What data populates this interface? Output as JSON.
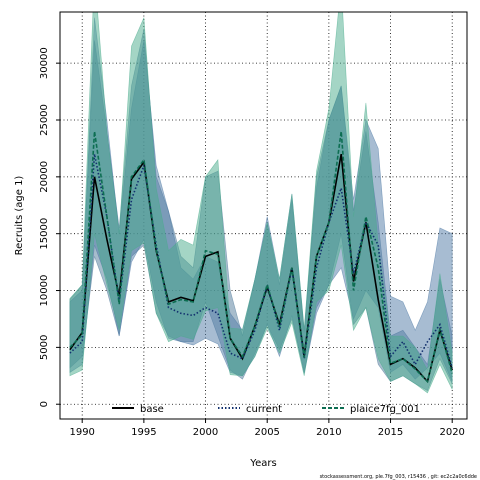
{
  "chart_data": {
    "type": "area",
    "title": "",
    "xlabel": "Years",
    "ylabel": "Recruits (age 1)",
    "xlim": [
      1988.2,
      2021.2
    ],
    "ylim": [
      -1300,
      34500
    ],
    "x_ticks": [
      1990,
      1995,
      2000,
      2005,
      2010,
      2015,
      2020
    ],
    "y_ticks": [
      0,
      5000,
      10000,
      15000,
      20000,
      25000,
      30000
    ],
    "grid": true,
    "legend_position": "bottom",
    "x": [
      1989,
      1990,
      1991,
      1992,
      1993,
      1994,
      1995,
      1996,
      1997,
      1998,
      1999,
      2000,
      2001,
      2002,
      2003,
      2004,
      2005,
      2006,
      2007,
      2008,
      2009,
      2010,
      2011,
      2012,
      2013,
      2014,
      2015,
      2016,
      2017,
      2018,
      2019,
      2020
    ],
    "series": [
      {
        "name": "base",
        "color": "#000000",
        "line_style": "solid",
        "band_color": "#4f7a9a",
        "values": [
          4800,
          6300,
          20000,
          14500,
          9500,
          19800,
          21300,
          13500,
          9000,
          9400,
          9100,
          13000,
          13400,
          5800,
          4000,
          6900,
          10300,
          7000,
          12000,
          4200,
          13000,
          16000,
          22000,
          10800,
          16000,
          9200,
          3500,
          4000,
          3200,
          2000,
          6500,
          3000
        ],
        "lower": [
          3200,
          4200,
          13000,
          10000,
          6000,
          13000,
          14000,
          8000,
          6000,
          5500,
          5500,
          9000,
          6000,
          3000,
          2200,
          4500,
          7000,
          4800,
          7500,
          2800,
          8500,
          10500,
          15000,
          7000,
          8500,
          3500,
          2000,
          2500,
          1800,
          1200,
          4000,
          1800
        ],
        "upper": [
          9200,
          10500,
          32000,
          24000,
          15500,
          28000,
          33000,
          20000,
          17000,
          13000,
          12000,
          20000,
          20500,
          10000,
          6000,
          11000,
          16000,
          10500,
          18000,
          6300,
          20000,
          25000,
          28000,
          17000,
          24000,
          16000,
          6000,
          6500,
          5000,
          3500,
          11000,
          6000
        ]
      },
      {
        "name": "current",
        "color": "#12306e",
        "line_style": "dotted",
        "band_color": "#4f7aa5",
        "values": [
          4500,
          5500,
          22000,
          16500,
          9000,
          18000,
          21000,
          14000,
          8500,
          8000,
          7800,
          8500,
          8000,
          4500,
          4000,
          6500,
          10500,
          6500,
          12000,
          4000,
          12000,
          16000,
          19000,
          11500,
          16000,
          14000,
          4200,
          5500,
          3500,
          5500,
          7000,
          3200
        ],
        "lower": [
          2800,
          3500,
          14000,
          11000,
          6000,
          12500,
          14500,
          9000,
          5800,
          5500,
          5200,
          5800,
          5300,
          2800,
          2500,
          4200,
          7000,
          4200,
          7800,
          2700,
          8000,
          10500,
          12000,
          7500,
          10000,
          8500,
          2800,
          3500,
          2200,
          3200,
          4500,
          2000
        ],
        "upper": [
          9000,
          10000,
          34000,
          25000,
          15000,
          26000,
          32000,
          21000,
          17000,
          12000,
          11000,
          13000,
          12500,
          8000,
          6500,
          11000,
          16500,
          11000,
          18500,
          6500,
          19000,
          25000,
          28000,
          18000,
          25000,
          22500,
          9500,
          9000,
          6500,
          9000,
          15500,
          15000
        ]
      },
      {
        "name": "plaice7fg_001",
        "color": "#0d6e52",
        "line_style": "dashed",
        "band_color": "#4aab8c",
        "values": [
          5000,
          6100,
          24000,
          16500,
          8800,
          20000,
          21500,
          13600,
          8800,
          9200,
          9000,
          13500,
          13200,
          5800,
          4200,
          6900,
          10500,
          6800,
          12000,
          4100,
          13000,
          16000,
          24000,
          10000,
          16500,
          12000,
          3600,
          4000,
          3100,
          2000,
          6600,
          2700
        ],
        "lower": [
          2500,
          3000,
          15000,
          10500,
          6500,
          13500,
          14200,
          8000,
          5500,
          6000,
          5700,
          8200,
          8500,
          2600,
          2500,
          4200,
          6700,
          4500,
          7200,
          2500,
          9000,
          10000,
          14000,
          6500,
          8500,
          4000,
          2000,
          2500,
          1800,
          1000,
          3500,
          1300
        ],
        "upper": [
          9300,
          10500,
          38000,
          24000,
          15000,
          31500,
          34000,
          19000,
          13500,
          14500,
          14000,
          20000,
          21500,
          6700,
          6600,
          11000,
          16000,
          11000,
          18500,
          6600,
          20500,
          26000,
          37000,
          16500,
          26500,
          14000,
          6000,
          6000,
          5000,
          3000,
          11500,
          4500
        ]
      }
    ]
  },
  "footer": {
    "text": "stockassessment.org,  ple.7fg_003, r15436 ,  git:  ec2c2a0c6dde"
  }
}
